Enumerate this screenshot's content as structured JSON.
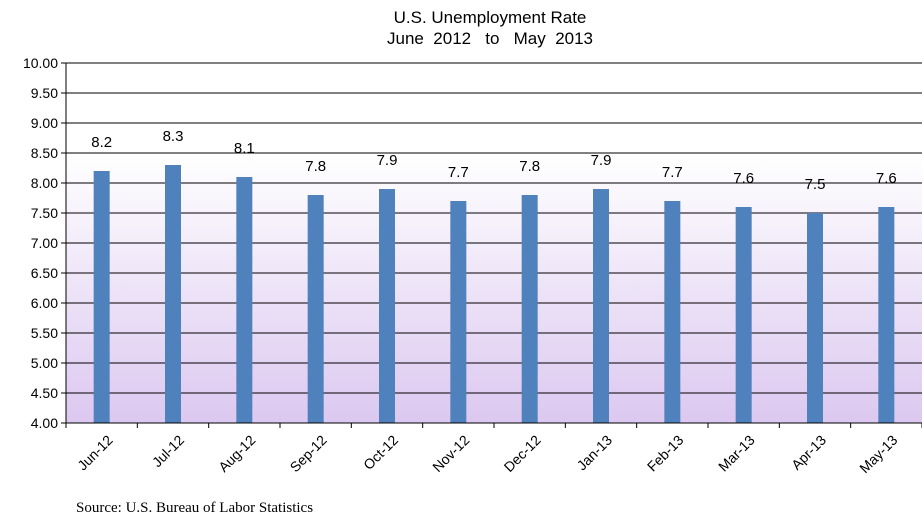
{
  "chart_data": {
    "type": "bar",
    "title": [
      "U.S. Unemployment Rate",
      "June  2012   to   May  2013"
    ],
    "xlabel": "",
    "ylabel": "",
    "categories": [
      "Jun-12",
      "Jul-12",
      "Aug-12",
      "Sep-12",
      "Oct-12",
      "Nov-12",
      "Dec-12",
      "Jan-13",
      "Feb-13",
      "Mar-13",
      "Apr-13",
      "May-13"
    ],
    "values": [
      8.2,
      8.3,
      8.1,
      7.8,
      7.9,
      7.7,
      7.8,
      7.9,
      7.7,
      7.6,
      7.5,
      7.6
    ],
    "data_labels": [
      "8.2",
      "8.3",
      "8.1",
      "7.8",
      "7.9",
      "7.7",
      "7.8",
      "7.9",
      "7.7",
      "7.6",
      "7.5",
      "7.6"
    ],
    "ylim": [
      4.0,
      10.0
    ],
    "yticks": [
      "4.00",
      "4.50",
      "5.00",
      "5.50",
      "6.00",
      "6.50",
      "7.00",
      "7.50",
      "8.00",
      "8.50",
      "9.00",
      "9.50",
      "10.00"
    ],
    "grid": true,
    "legend": "none",
    "colors": {
      "bar": "#4f81bd",
      "plot_gradient_top": "#ffffff",
      "plot_gradient_bottom": "#dcc8f0"
    }
  },
  "footer": {
    "source": "Source: U.S. Bureau of Labor Statistics"
  }
}
